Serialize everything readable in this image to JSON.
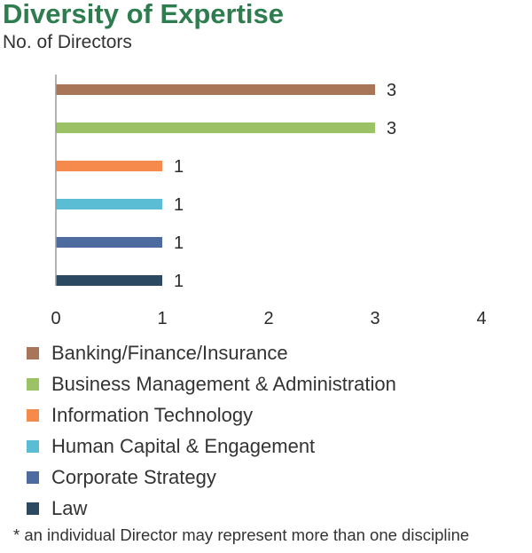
{
  "header": {
    "title": "Diversity of Expertise",
    "subtitle": "No. of Directors"
  },
  "chart_data": {
    "type": "bar",
    "orientation": "horizontal",
    "title": "Diversity of Expertise",
    "subtitle": "No. of Directors",
    "categories": [
      "Banking/Finance/Insurance",
      "Business Management & Administration",
      "Information Technology",
      "Human Capital & Engagement",
      "Corporate Strategy",
      "Law"
    ],
    "values": [
      3,
      3,
      1,
      1,
      1,
      1
    ],
    "colors": [
      "#a97558",
      "#9bc366",
      "#f58a4c",
      "#5bbdd4",
      "#4d6b9f",
      "#2b4a61"
    ],
    "xlim": [
      0,
      4
    ],
    "xticks": [
      "0",
      "1",
      "2",
      "3",
      "4"
    ],
    "grid": false,
    "legend_position": "bottom"
  },
  "footnote": "* an individual Director may represent more than one discipline"
}
